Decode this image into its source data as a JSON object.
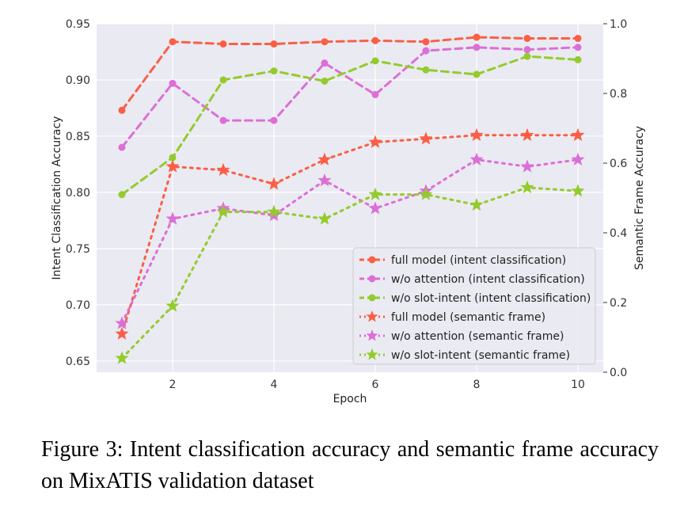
{
  "caption": "Figure 3: Intent classification accuracy and semantic frame accuracy on MixATIS validation dataset",
  "chart_data": {
    "type": "line",
    "xlabel": "Epoch",
    "ylabel_left": "Intent Classification Accuracy",
    "ylabel_right": "Semantic Frame Accuracy",
    "x": [
      1,
      2,
      3,
      4,
      5,
      6,
      7,
      8,
      9,
      10
    ],
    "xticks": [
      "2",
      "4",
      "6",
      "8",
      "10"
    ],
    "xtick_values": [
      2,
      4,
      6,
      8,
      10
    ],
    "xlim": [
      0.5,
      10.5
    ],
    "ylim_left": [
      0.64,
      0.95
    ],
    "ylim_right": [
      0.0,
      1.0
    ],
    "yticks_left": [
      "0.65",
      "0.70",
      "0.75",
      "0.80",
      "0.85",
      "0.90",
      "0.95"
    ],
    "ytick_values_left": [
      0.65,
      0.7,
      0.75,
      0.8,
      0.85,
      0.9,
      0.95
    ],
    "yticks_right": [
      "0.0",
      "0.2",
      "0.4",
      "0.6",
      "0.8",
      "1.0"
    ],
    "ytick_values_right": [
      0.0,
      0.2,
      0.4,
      0.6,
      0.8,
      1.0
    ],
    "grid": true,
    "legend_position": "lower-right",
    "series": [
      {
        "name": "full model (intent classification)",
        "axis": "left",
        "color": "#fa5f46",
        "marker": "circle",
        "dash": "dashed",
        "values": [
          0.873,
          0.934,
          0.932,
          0.932,
          0.934,
          0.935,
          0.934,
          0.938,
          0.937,
          0.937
        ]
      },
      {
        "name": "w/o attention (intent classification)",
        "axis": "left",
        "color": "#dc6fd6",
        "marker": "circle",
        "dash": "dashed",
        "values": [
          0.84,
          0.897,
          0.864,
          0.864,
          0.915,
          0.887,
          0.926,
          0.929,
          0.927,
          0.929
        ]
      },
      {
        "name": "w/o slot-intent (intent classification)",
        "axis": "left",
        "color": "#93cb2c",
        "marker": "circle",
        "dash": "dashed",
        "values": [
          0.798,
          0.831,
          0.9,
          0.908,
          0.899,
          0.917,
          0.909,
          0.905,
          0.921,
          0.918
        ]
      },
      {
        "name": "full model (semantic frame)",
        "axis": "right",
        "color": "#fa5f46",
        "marker": "star",
        "dash": "dotted",
        "values": [
          0.11,
          0.59,
          0.58,
          0.54,
          0.61,
          0.66,
          0.67,
          0.68,
          0.68,
          0.68
        ]
      },
      {
        "name": "w/o attention (semantic frame)",
        "axis": "right",
        "color": "#dc6fd6",
        "marker": "star",
        "dash": "dotted",
        "values": [
          0.14,
          0.44,
          0.47,
          0.45,
          0.55,
          0.47,
          0.52,
          0.61,
          0.59,
          0.61
        ]
      },
      {
        "name": "w/o slot-intent (semantic frame)",
        "axis": "right",
        "color": "#93cb2c",
        "marker": "star",
        "dash": "dotted",
        "values": [
          0.04,
          0.19,
          0.46,
          0.46,
          0.44,
          0.51,
          0.51,
          0.48,
          0.53,
          0.52
        ]
      }
    ]
  }
}
